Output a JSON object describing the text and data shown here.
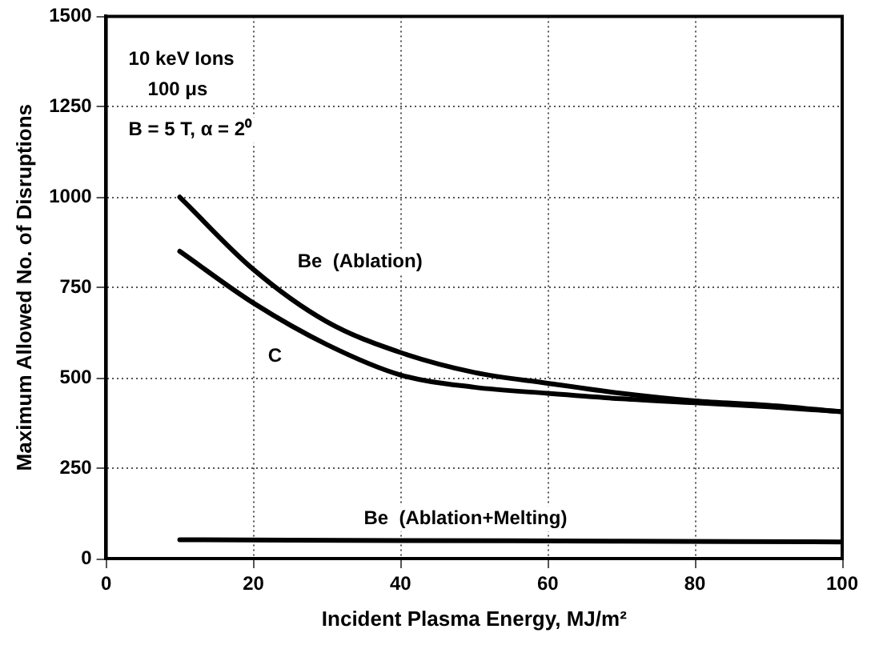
{
  "chart_data": {
    "type": "line",
    "xlabel": "Incident Plasma Energy, MJ/m²",
    "ylabel": "Maximum Allowed No. of Disruptions",
    "annotations": [
      "10 keV Ions",
      "100 μs",
      "B = 5 T, α = 2⁰"
    ],
    "xlim": [
      0,
      100
    ],
    "xticks": [
      0,
      20,
      40,
      60,
      80,
      100
    ],
    "ylim": [
      0,
      1500
    ],
    "yticks": [
      0,
      250,
      500,
      750,
      1000,
      1250,
      1500
    ],
    "grid": true,
    "legend": false,
    "marker": "none",
    "line_style": "solid",
    "series": [
      {
        "name": "Be  (Ablation)",
        "color": "#000000",
        "x": [
          10,
          20,
          30,
          40,
          50,
          60,
          70,
          80,
          90,
          100
        ],
        "values": [
          1000,
          800,
          655,
          570,
          515,
          485,
          457,
          436,
          424,
          406
        ]
      },
      {
        "name": "C",
        "color": "#000000",
        "x": [
          10,
          20,
          30,
          40,
          50,
          60,
          70,
          80,
          90,
          100
        ],
        "values": [
          850,
          707,
          592,
          508,
          474,
          457,
          442,
          431,
          420,
          406
        ]
      },
      {
        "name": "Be  (Ablation+Melting)",
        "color": "#000000",
        "x": [
          10,
          40,
          70,
          100
        ],
        "values": [
          52,
          50,
          48,
          46
        ]
      }
    ]
  }
}
